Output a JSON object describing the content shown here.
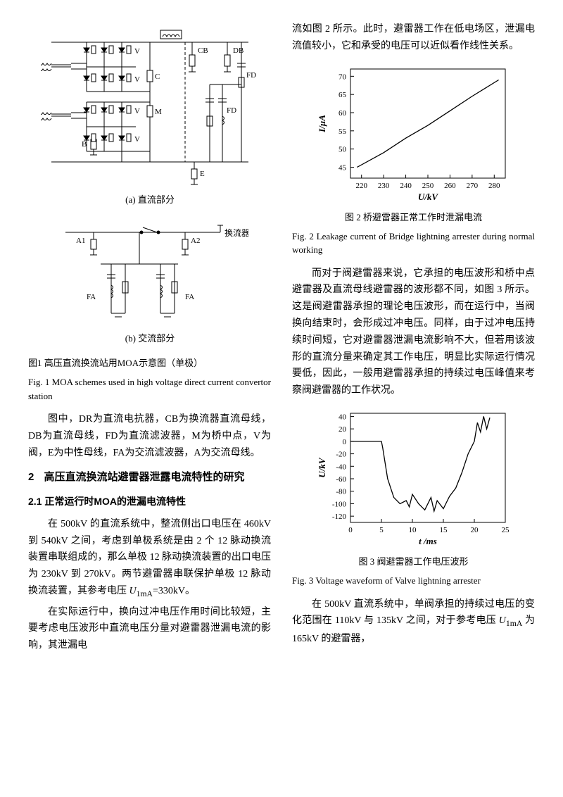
{
  "left": {
    "fig1": {
      "sub_a": "(a) 直流部分",
      "sub_b": "(b) 交流部分",
      "caption_zh": "图1 高压直流换流站用MOA示意图（单极）",
      "caption_en": "Fig. 1 MOA schemes used in high voltage direct current convertor station",
      "labels": {
        "DR": "DR",
        "CB": "CB",
        "DB": "DB",
        "FD1": "FD",
        "FD2": "FD",
        "C": "C",
        "M": "M",
        "B": "B",
        "E": "E",
        "V": "V",
        "A1": "A1",
        "A2": "A2",
        "FA": "FA",
        "conv": "换流器极"
      }
    },
    "para1": "图中，DR为直流电抗器，CB为换流器直流母线，DB为直流母线，FD为直流滤波器，M为桥中点，V为阀，E为中性母线，FA为交流滤波器，A为交流母线。",
    "h2_num": "2",
    "h2_text": "高压直流换流站避雷器泄露电流特性的研究",
    "h3": "2.1 正常运行时MOA的泄漏电流特性",
    "para2_a": "在 500kV 的直流系统中，整流侧出口电压在 460kV 到 540kV 之间，考虑到单极系统是由 2 个 12 脉动换流装置串联组成的，那么单极 12 脉动换流装置的出口电压为 230kV 到 270kV。两节避雷器串联保护单极 12 脉动换流装置，其参考电压 ",
    "para2_var": "U",
    "para2_sub": "1mA",
    "para2_b": "=330kV。",
    "para3": "在实际运行中，换向过冲电压作用时间比较短，主要考虑电压波形中直流电压分量对避雷器泄漏电流的影响，其泄漏电"
  },
  "right": {
    "para1": "流如图 2 所示。此时，避雷器工作在低电场区，泄漏电流值较小，它和承受的电压可以近似看作线性关系。",
    "fig2": {
      "caption_zh": "图 2 桥避雷器正常工作时泄漏电流",
      "caption_en": "Fig. 2 Leakage current of Bridge lightning arrester during normal working",
      "xlabel": "U/kV",
      "ylabel": "I/µA",
      "xlim": [
        215,
        285
      ],
      "ylim": [
        42,
        72
      ],
      "xticks": [
        220,
        230,
        240,
        250,
        260,
        270,
        280
      ],
      "yticks": [
        45,
        50,
        55,
        60,
        65,
        70
      ],
      "line_color": "#000000",
      "data": [
        [
          218,
          45
        ],
        [
          230,
          49
        ],
        [
          240,
          53
        ],
        [
          250,
          56.5
        ],
        [
          260,
          60.5
        ],
        [
          270,
          64.5
        ],
        [
          282,
          69
        ]
      ]
    },
    "para2": "而对于阀避雷器来说，它承担的电压波形和桥中点避雷器及直流母线避雷器的波形都不同，如图 3 所示。这是阀避雷器承担的理论电压波形，而在运行中，当阀换向结束时，会形成过冲电压。同样，由于过冲电压持续时间短，它对避雷器泄漏电流影响不大，但若用该波形的直流分量来确定其工作电压，明显比实际运行情况要低，因此，一般用避雷器承担的持续过电压峰值来考察阀避雷器的工作状况。",
    "fig3": {
      "caption_zh": "图 3 阀避雷器工作电压波形",
      "caption_en": "Fig. 3 Voltage waveform of Valve lightning arrester",
      "xlabel": "t /ms",
      "ylabel": "U/kV",
      "xlim": [
        0,
        25
      ],
      "ylim": [
        -130,
        45
      ],
      "xticks": [
        0,
        5,
        10,
        15,
        20,
        25
      ],
      "yticks": [
        -120,
        -100,
        -80,
        -60,
        -40,
        -20,
        0,
        20,
        40
      ],
      "line_color": "#000000",
      "data": [
        [
          0,
          0
        ],
        [
          5,
          0
        ],
        [
          5.2,
          -10
        ],
        [
          6,
          -60
        ],
        [
          7,
          -90
        ],
        [
          8,
          -100
        ],
        [
          9,
          -95
        ],
        [
          9.5,
          -105
        ],
        [
          10,
          -85
        ],
        [
          11,
          -100
        ],
        [
          12,
          -110
        ],
        [
          13,
          -90
        ],
        [
          13.5,
          -112
        ],
        [
          14,
          -95
        ],
        [
          15,
          -108
        ],
        [
          16,
          -88
        ],
        [
          17,
          -75
        ],
        [
          18,
          -50
        ],
        [
          19,
          -20
        ],
        [
          20,
          0
        ],
        [
          20.5,
          30
        ],
        [
          21,
          15
        ],
        [
          21.5,
          40
        ],
        [
          22,
          20
        ],
        [
          22.5,
          38
        ]
      ]
    },
    "para3_a": "在 500kV 直流系统中，单阀承担的持续过电压的变化范围在 110kV 与 135kV 之间，对于参考电压 ",
    "para3_var": "U",
    "para3_sub": "1mA",
    "para3_b": " 为 165kV 的避雷器，"
  }
}
